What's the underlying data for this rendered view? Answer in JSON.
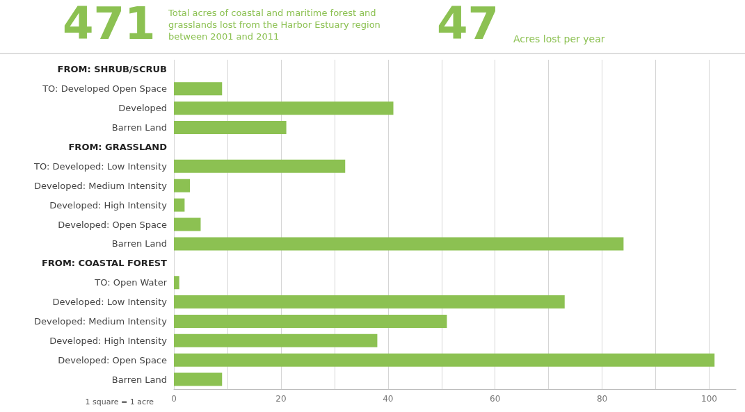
{
  "chart_data": {
    "type": "bar",
    "orientation": "horizontal",
    "title": "471",
    "subtitle": "Total acres of coastal and maritime forest and grasslands lost from the Harbor Estuary region between 2001 and 2011",
    "annotations": [
      "47",
      "Acres lost per year",
      "1 square = 1 acre"
    ],
    "categories": [
      "FROM: SHRUB/SCRUB",
      "TO: Developed Open Space",
      "Developed",
      "Barren Land",
      "FROM: GRASSLAND",
      "TO: Developed: Low Intensity",
      "Developed: Medium Intensity",
      "Developed: High Intensity",
      "Developed: Open Space",
      "Barren Land",
      "FROM: COASTAL FOREST",
      "TO: Open Water",
      "Developed: Low Intensity",
      "Developed: Medium Intensity",
      "Developed: High Intensity",
      "Developed: Open Space",
      "Barren Land"
    ],
    "values": [
      null,
      9,
      41,
      21,
      null,
      32,
      3,
      2,
      5,
      84,
      null,
      1,
      73,
      51,
      38,
      101,
      9
    ],
    "color": "#8cc152",
    "xlim": [
      0,
      105
    ],
    "xticks": [
      0,
      {
        "value": 10,
        "label": null
      },
      20,
      {
        "value": 30,
        "label": null
      },
      40,
      {
        "value": 50,
        "label": null
      },
      60,
      {
        "value": 70,
        "label": null
      },
      80,
      {
        "value": 90,
        "label": null
      },
      100
    ],
    "grid": "x"
  }
}
